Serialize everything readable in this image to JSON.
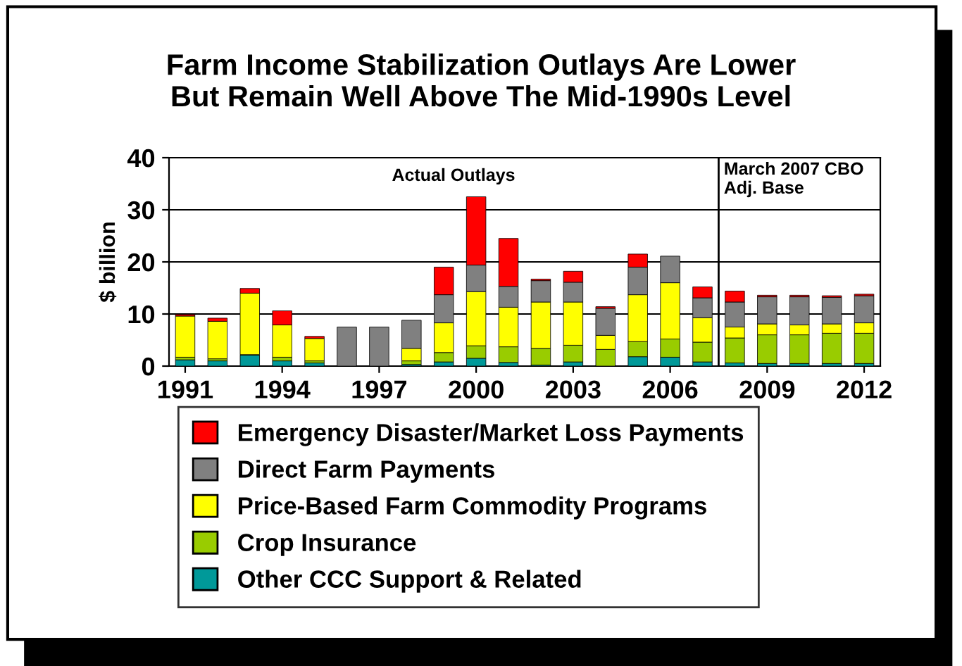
{
  "chart_data": {
    "type": "bar",
    "stacked": true,
    "title": "Farm Income Stabilization Outlays Are Lower\nBut Remain Well Above The Mid-1990s Level",
    "ylabel": "$ billion",
    "x": [
      1991,
      1992,
      1993,
      1994,
      1995,
      1996,
      1997,
      1998,
      1999,
      2000,
      2001,
      2002,
      2003,
      2004,
      2005,
      2006,
      2007,
      2008,
      2009,
      2010,
      2011,
      2012
    ],
    "xlim": [
      1990.5,
      2012.5
    ],
    "xticks": [
      1991,
      1994,
      1997,
      2000,
      2003,
      2006,
      2009,
      2012
    ],
    "ylim": [
      0,
      40
    ],
    "yticks": [
      0,
      10,
      20,
      30,
      40
    ],
    "grid": "y",
    "legend": "bottom",
    "series": [
      {
        "name": "Other CCC Support & Related",
        "color": "#009999",
        "values": [
          1.2,
          1.0,
          2.1,
          1.0,
          0.6,
          0,
          0,
          0.3,
          0.8,
          1.5,
          0.7,
          0.2,
          0.8,
          0,
          1.8,
          1.7,
          0.8,
          0.6,
          0.5,
          0.5,
          0.5,
          0.5
        ]
      },
      {
        "name": "Crop Insurance",
        "color": "#99cc00",
        "values": [
          0.5,
          0.4,
          0.1,
          0.7,
          0.4,
          0,
          0,
          0.7,
          1.8,
          2.4,
          3.0,
          3.2,
          3.2,
          3.2,
          2.9,
          3.5,
          3.8,
          4.8,
          5.5,
          5.5,
          5.8,
          5.8
        ]
      },
      {
        "name": "Price-Based Farm Commodity Programs",
        "color": "#ffff00",
        "values": [
          7.9,
          7.2,
          11.8,
          6.2,
          4.3,
          0,
          0,
          2.4,
          5.7,
          10.4,
          7.6,
          8.9,
          8.3,
          2.7,
          9.0,
          10.8,
          4.7,
          2.1,
          2.1,
          1.9,
          1.8,
          2.0
        ]
      },
      {
        "name": "Direct Farm Payments",
        "color": "#808080",
        "values": [
          0,
          0,
          0,
          0,
          0,
          7.5,
          7.5,
          5.4,
          5.4,
          5.1,
          4.0,
          4.1,
          3.8,
          5.2,
          5.3,
          5.1,
          3.8,
          4.8,
          5.2,
          5.4,
          5.1,
          5.2
        ]
      },
      {
        "name": "Emergency Disaster/Market Loss Payments",
        "color": "#ff0000",
        "values": [
          0.3,
          0.6,
          0.9,
          2.7,
          0.4,
          0,
          0,
          0,
          5.3,
          13.1,
          9.2,
          0.3,
          2.1,
          0.3,
          2.5,
          0,
          2.1,
          2.1,
          0.3,
          0.3,
          0.3,
          0.3
        ]
      }
    ],
    "ref_lines": [
      {
        "axis": "x",
        "value": 2007.5,
        "color": "#000000"
      }
    ],
    "annotations": [
      "Actual Outlays",
      "March 2007 CBO\nAdj. Base"
    ]
  }
}
